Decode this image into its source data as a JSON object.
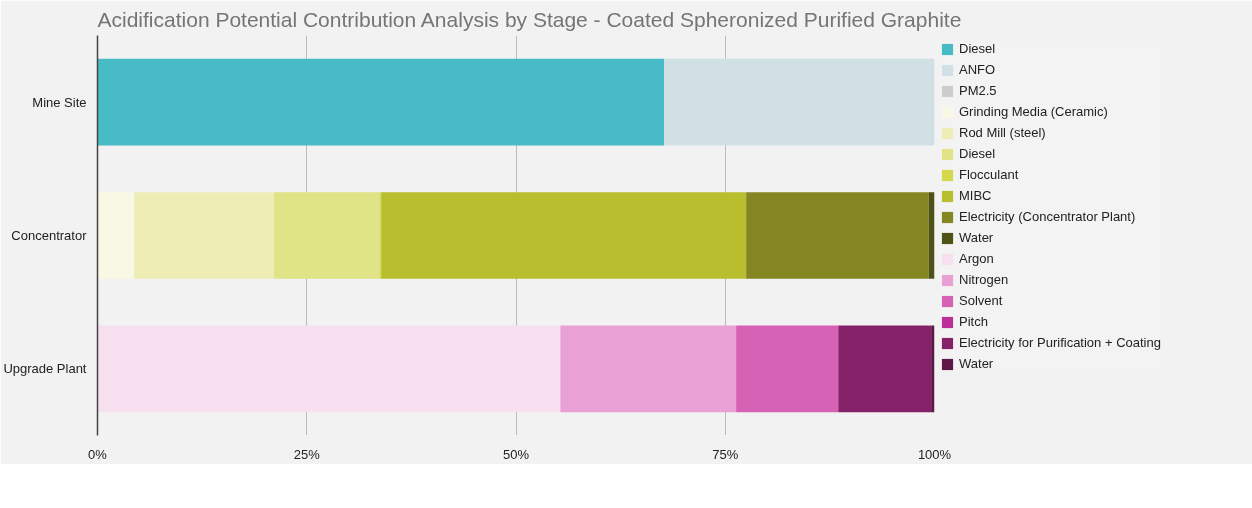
{
  "chart_data": {
    "type": "bar",
    "orientation": "horizontal",
    "stacked": true,
    "title": "Acidification Potential Contribution Analysis by Stage - Coated Spheronized Purified Graphite",
    "categories": [
      "Mine Site",
      "Concentrator",
      "Upgrade Plant"
    ],
    "series": [
      {
        "name": "Diesel",
        "color": "#47bcc7",
        "values": [
          67.7,
          null,
          null
        ]
      },
      {
        "name": "ANFO",
        "color": "#d1e0e4",
        "values": [
          32.3,
          null,
          null
        ]
      },
      {
        "name": "PM2.5",
        "color": "#cccccc",
        "values": [
          0,
          null,
          null
        ]
      },
      {
        "name": "Grinding Media (Ceramic)",
        "color": "#f8f8e4",
        "values": [
          null,
          4.4,
          null
        ]
      },
      {
        "name": "Rod Mill (steel)",
        "color": "#eeedb5",
        "values": [
          null,
          16.7,
          null
        ]
      },
      {
        "name": "Diesel",
        "color": "#e0e386",
        "values": [
          null,
          12.6,
          null
        ]
      },
      {
        "name": "Flocculant",
        "color": "#d4d84c",
        "values": [
          null,
          0.2,
          null
        ]
      },
      {
        "name": "MIBC",
        "color": "#b8be2d",
        "values": [
          null,
          43.6,
          null
        ]
      },
      {
        "name": "Electricity (Concentrator Plant)",
        "color": "#848622",
        "values": [
          null,
          21.8,
          null
        ]
      },
      {
        "name": "Water",
        "color": "#4f5216",
        "values": [
          null,
          0.7,
          null
        ]
      },
      {
        "name": "Argon",
        "color": "#f6dfee",
        "values": [
          null,
          null,
          55.3
        ]
      },
      {
        "name": "Nitrogen",
        "color": "#e9a0d4",
        "values": [
          null,
          null,
          21.0
        ]
      },
      {
        "name": "Solvent",
        "color": "#d662b5",
        "values": [
          null,
          null,
          12.2
        ]
      },
      {
        "name": "Pitch",
        "color": "#bc2f98",
        "values": [
          null,
          null,
          0
        ]
      },
      {
        "name": "Electricity for Purification + Coating",
        "color": "#86226a",
        "values": [
          null,
          null,
          11.1
        ]
      },
      {
        "name": "Water",
        "color": "#5e1748",
        "values": [
          null,
          null,
          0.4
        ]
      }
    ],
    "xlim": [
      0,
      100
    ],
    "xticks": [
      {
        "value": 0,
        "label": "0%"
      },
      {
        "value": 25,
        "label": "25%"
      },
      {
        "value": 50,
        "label": "50%"
      },
      {
        "value": 75,
        "label": "75%"
      },
      {
        "value": 100,
        "label": "100%"
      }
    ],
    "grid": "x",
    "legend": "right"
  }
}
